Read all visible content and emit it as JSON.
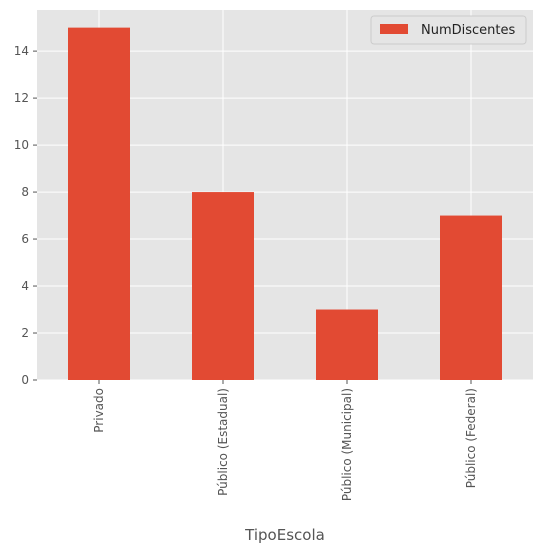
{
  "chart_data": {
    "type": "bar",
    "title": "",
    "xlabel": "TipoEscola",
    "ylabel": "",
    "categories": [
      "Privado",
      "Público (Estadual)",
      "Público (Municipal)",
      "Público (Federal)"
    ],
    "series": [
      {
        "name": "NumDiscentes",
        "values": [
          15,
          8,
          3,
          7
        ],
        "color": "#E24A33"
      }
    ],
    "ylim": [
      0,
      15.75
    ],
    "yticks": [
      0,
      2,
      4,
      6,
      8,
      10,
      12,
      14
    ],
    "grid": true,
    "legend_position": "top-right",
    "background_color": "#E5E5E5",
    "grid_color": "#FFFFFF"
  }
}
